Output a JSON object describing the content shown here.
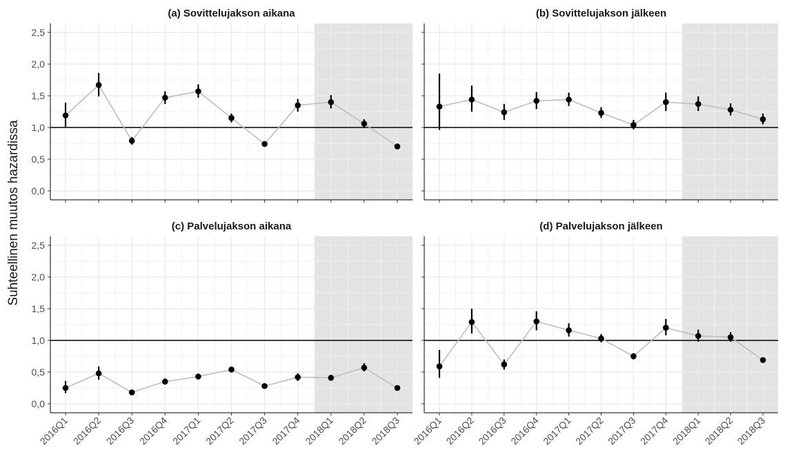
{
  "chart_data": {
    "type": "line",
    "ylabel": "Suhteellinen muutos hazardissa",
    "ylim": [
      0,
      2.5
    ],
    "y_ticks": [
      "0,0",
      "0,5",
      "1,0",
      "1,5",
      "2,0",
      "2,5"
    ],
    "categories": [
      "2016Q1",
      "2016Q2",
      "2016Q3",
      "2016Q4",
      "2017Q1",
      "2017Q2",
      "2017Q3",
      "2017Q4",
      "2018Q1",
      "2018Q2",
      "2018Q3"
    ],
    "reference_line": 1.0,
    "shaded_categories": [
      "2018Q1",
      "2018Q2",
      "2018Q3"
    ],
    "grid": true,
    "colors": {
      "points": "#000000",
      "line": "#bdbdbd",
      "shade": "#e3e3e3",
      "grid": "#ebebeb",
      "reference": "#000000"
    },
    "panels": [
      {
        "title": "(a) Sovittelujakson aikana",
        "values": [
          1.19,
          1.67,
          0.79,
          1.47,
          1.57,
          1.15,
          0.74,
          1.35,
          1.4,
          1.06,
          0.7
        ],
        "lower": [
          1.01,
          1.49,
          0.73,
          1.37,
          1.47,
          1.08,
          0.71,
          1.25,
          1.3,
          0.99,
          0.68
        ],
        "upper": [
          1.39,
          1.86,
          0.85,
          1.57,
          1.68,
          1.22,
          0.77,
          1.45,
          1.51,
          1.13,
          0.72
        ]
      },
      {
        "title": "(b) Sovittelujakson jälkeen",
        "values": [
          1.33,
          1.44,
          1.24,
          1.42,
          1.44,
          1.23,
          1.04,
          1.4,
          1.37,
          1.28,
          1.13
        ],
        "lower": [
          0.96,
          1.25,
          1.12,
          1.29,
          1.34,
          1.15,
          0.97,
          1.26,
          1.26,
          1.19,
          1.05
        ],
        "upper": [
          1.85,
          1.66,
          1.37,
          1.56,
          1.55,
          1.32,
          1.12,
          1.55,
          1.49,
          1.38,
          1.22
        ]
      },
      {
        "title": "(c) Palvelujakson aikana",
        "values": [
          0.25,
          0.48,
          0.18,
          0.35,
          0.43,
          0.54,
          0.28,
          0.42,
          0.41,
          0.57,
          0.25
        ],
        "lower": [
          0.17,
          0.38,
          0.16,
          0.31,
          0.39,
          0.5,
          0.26,
          0.36,
          0.37,
          0.51,
          0.23
        ],
        "upper": [
          0.36,
          0.59,
          0.2,
          0.4,
          0.47,
          0.59,
          0.3,
          0.48,
          0.45,
          0.64,
          0.27
        ]
      },
      {
        "title": "(d) Palvelujakson jälkeen",
        "values": [
          0.59,
          1.29,
          0.62,
          1.3,
          1.16,
          1.03,
          0.75,
          1.2,
          1.07,
          1.05,
          0.69
        ],
        "lower": [
          0.41,
          1.11,
          0.54,
          1.16,
          1.06,
          0.97,
          0.7,
          1.08,
          0.98,
          0.98,
          0.65
        ],
        "upper": [
          0.85,
          1.5,
          0.7,
          1.46,
          1.27,
          1.1,
          0.8,
          1.34,
          1.17,
          1.13,
          0.73
        ]
      }
    ]
  }
}
